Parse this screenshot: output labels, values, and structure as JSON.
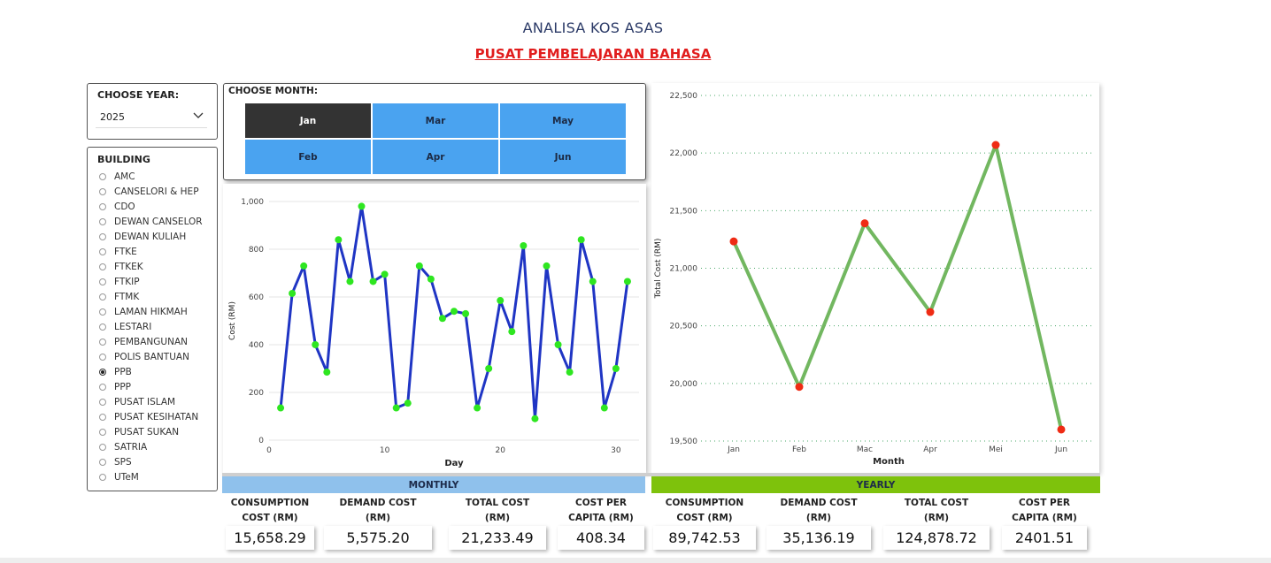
{
  "header": {
    "title": "ANALISA KOS ASAS",
    "subtitle": "PUSAT PEMBELAJARAN BAHASA"
  },
  "year_filter": {
    "label": "CHOOSE YEAR:",
    "value": "2025"
  },
  "building_filter": {
    "label": "BUILDING",
    "selected": "PPB",
    "items": [
      "AMC",
      "CANSELORI & HEP",
      "CDO",
      "DEWAN CANSELOR",
      "DEWAN KULIAH",
      "FTKE",
      "FTKEK",
      "FTKIP",
      "FTMK",
      "LAMAN HIKMAH",
      "LESTARI",
      "PEMBANGUNAN",
      "POLIS BANTUAN",
      "PPB",
      "PPP",
      "PUSAT ISLAM",
      "PUSAT KESIHATAN",
      "PUSAT SUKAN",
      "SATRIA",
      "SPS",
      "UTeM"
    ]
  },
  "month_filter": {
    "label": "CHOOSE MONTH:",
    "selected": "Jan",
    "buttons": [
      "Jan",
      "Mar",
      "May",
      "Feb",
      "Apr",
      "Jun"
    ]
  },
  "colors": {
    "daily_line": "#1f35c4",
    "daily_point": "#2ee620",
    "yearly_line": "#72b760",
    "yearly_point": "#ef2b14",
    "monthly_bar": "#8fc1ec",
    "yearly_bar": "#7ec20c"
  },
  "chart_data": [
    {
      "type": "line",
      "xlabel": "Day",
      "ylabel": "Cost (RM)",
      "xlim": [
        0,
        32
      ],
      "ylim": [
        0,
        1000
      ],
      "xticks": [
        0,
        10,
        20,
        30
      ],
      "yticks": [
        0,
        200,
        400,
        600,
        800,
        1000
      ],
      "ytick_labels": [
        "0",
        "200",
        "400",
        "600",
        "800",
        "1,000"
      ],
      "grid": true,
      "x": [
        1,
        2,
        3,
        4,
        5,
        6,
        7,
        8,
        9,
        10,
        11,
        12,
        13,
        14,
        15,
        16,
        17,
        18,
        19,
        20,
        21,
        22,
        23,
        24,
        25,
        26,
        27,
        28,
        29,
        30,
        31
      ],
      "values": [
        135,
        615,
        730,
        400,
        285,
        840,
        665,
        980,
        665,
        695,
        135,
        155,
        730,
        675,
        510,
        540,
        530,
        135,
        300,
        585,
        455,
        815,
        90,
        730,
        400,
        285,
        840,
        665,
        135,
        300,
        665
      ]
    },
    {
      "type": "line",
      "xlabel": "Month",
      "ylabel": "Total Cost (RM)",
      "ylim": [
        19500,
        22500
      ],
      "yticks": [
        19500,
        20000,
        20500,
        21000,
        21500,
        22000,
        22500
      ],
      "ytick_labels": [
        "19,500",
        "20,000",
        "20,500",
        "21,000",
        "21,500",
        "22,000",
        "22,500"
      ],
      "grid": true,
      "categories": [
        "Jan",
        "Feb",
        "Mac",
        "Apr",
        "Mei",
        "Jun"
      ],
      "values": [
        21233,
        19970,
        21390,
        20620,
        22070,
        19600
      ]
    }
  ],
  "monthly": {
    "header": "MONTHLY",
    "kpis": [
      {
        "label1": "CONSUMPTION",
        "label2": "COST (RM)",
        "value": "15,658.29"
      },
      {
        "label1": "DEMAND COST",
        "label2": "(RM)",
        "value": "5,575.20"
      },
      {
        "label1": "TOTAL COST",
        "label2": "(RM)",
        "value": "21,233.49"
      },
      {
        "label1": "COST PER",
        "label2": "CAPITA (RM)",
        "value": "408.34"
      }
    ]
  },
  "yearly": {
    "header": "YEARLY",
    "kpis": [
      {
        "label1": "CONSUMPTION",
        "label2": "COST (RM)",
        "value": "89,742.53"
      },
      {
        "label1": "DEMAND COST",
        "label2": "(RM)",
        "value": "35,136.19"
      },
      {
        "label1": "TOTAL COST",
        "label2": "(RM)",
        "value": "124,878.72"
      },
      {
        "label1": "COST PER",
        "label2": "CAPITA (RM)",
        "value": "2401.51"
      }
    ]
  }
}
